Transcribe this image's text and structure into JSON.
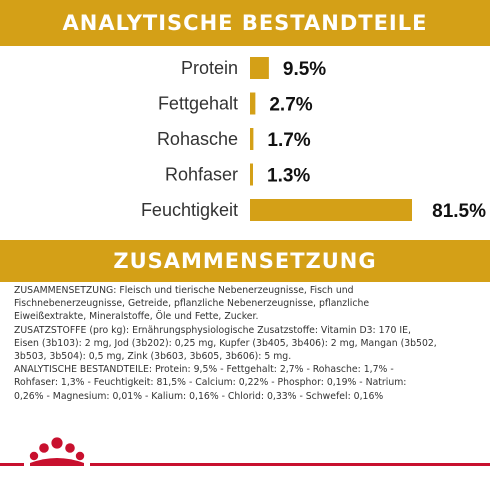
{
  "header": {
    "title": "ANALYTISCHE BESTANDTEILE"
  },
  "chart_data": {
    "type": "bar",
    "orientation": "horizontal",
    "title": "ANALYTISCHE BESTANDTEILE",
    "categories": [
      "Protein",
      "Fettgehalt",
      "Rohasche",
      "Rohfaser",
      "Feuchtigkeit"
    ],
    "values": [
      9.5,
      2.7,
      1.7,
      1.3,
      81.5
    ],
    "value_labels": [
      "9.5%",
      "2.7%",
      "1.7%",
      "1.3%",
      "81.5%"
    ],
    "unit": "%",
    "xlim": [
      0,
      81.5
    ],
    "grid": false,
    "legend": "none",
    "bar_color": "#d4a017"
  },
  "composition": {
    "title": "ZUSAMMENSETZUNG",
    "lines": [
      "ZUSAMMENSETZUNG: Fleisch und tierische Nebenerzeugnisse, Fisch und",
      "Fischnebenerzeugnisse, Getreide, pflanzliche Nebenerzeugnisse, pflanzliche",
      "Eiweißextrakte, Mineralstoffe, Öle und Fette, Zucker.",
      "ZUSATZSTOFFE (pro kg): Ernährungsphysiologische Zusatzstoffe: Vitamin D3: 170 IE,",
      "Eisen (3b103): 2 mg, Jod (3b202): 0,25 mg, Kupfer (3b405, 3b406): 2 mg, Mangan (3b502,",
      "3b503, 3b504): 0,5 mg, Zink (3b603, 3b605, 3b606): 5 mg.",
      "ANALYTISCHE BESTANDTEILE: Protein: 9,5% - Fettgehalt: 2,7% - Rohasche: 1,7% -",
      "Rohfaser: 1,3% - Feuchtigkeit: 81,5% - Calcium: 0,22% - Phosphor: 0,19% - Natrium:",
      "0,26% - Magnesium: 0,01% - Kalium: 0,16% - Chlorid: 0,33% - Schwefel: 0,16%"
    ]
  },
  "brand": {
    "accent": "#d4a017",
    "footer_red": "#c8102e",
    "logo_icon": "crown-icon"
  }
}
